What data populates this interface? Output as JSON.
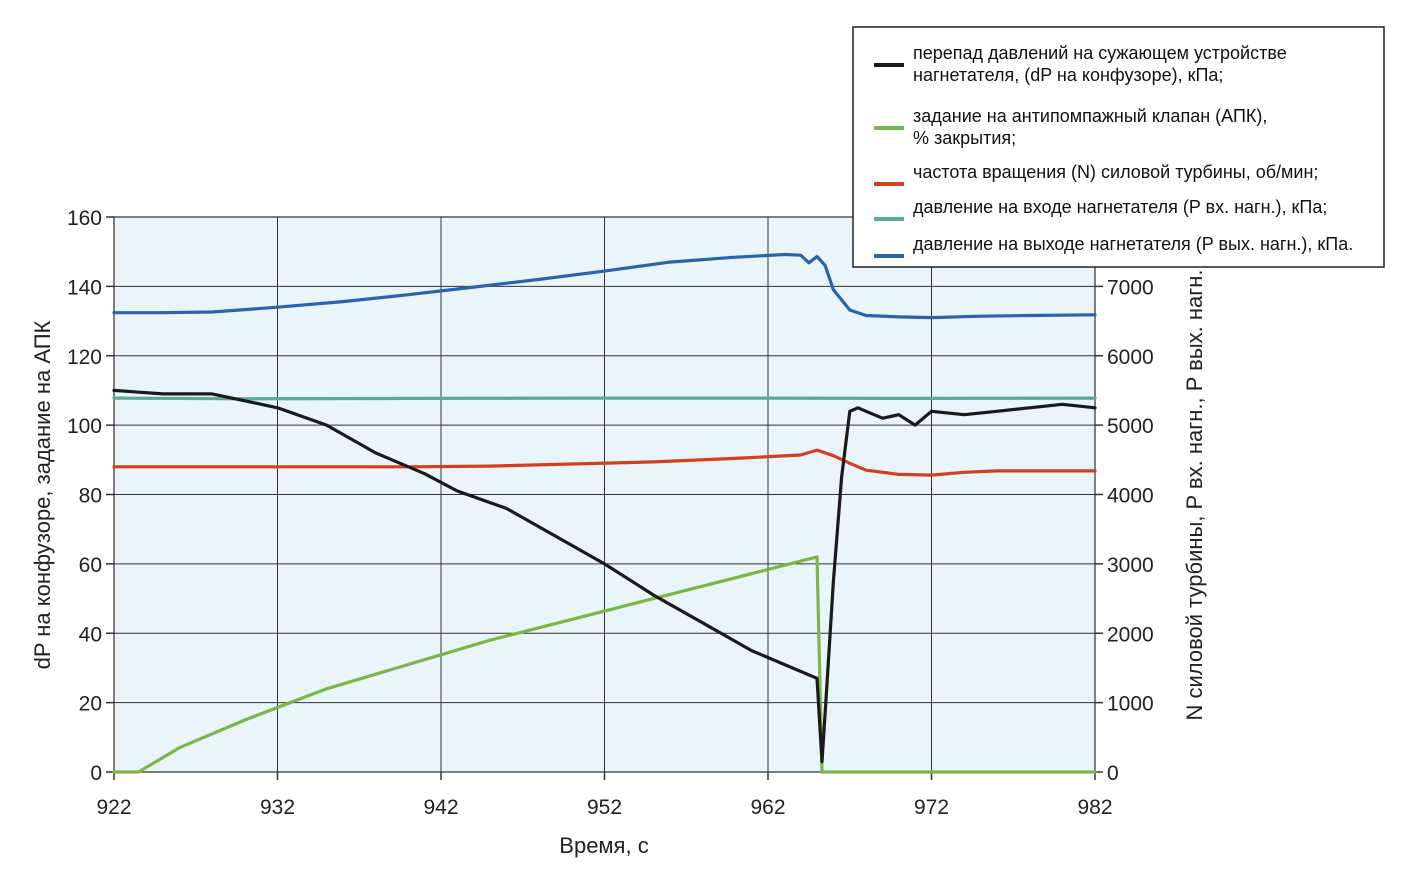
{
  "chart_data": {
    "type": "line",
    "xlabel": "Время, с",
    "ylabel_left": "dP на конфузоре, задание на АПК",
    "ylabel_right": "N силовой турбины, P вх. нагн., P вых. нагн.",
    "xlim": [
      922,
      982
    ],
    "ylim_left": [
      0,
      160
    ],
    "ylim_right": [
      0,
      8000
    ],
    "x_ticks": [
      922,
      932,
      942,
      952,
      962,
      972,
      982
    ],
    "y_ticks_left": [
      0,
      20,
      40,
      60,
      80,
      100,
      120,
      140,
      160
    ],
    "y_ticks_right": [
      0,
      1000,
      2000,
      3000,
      4000,
      5000,
      6000,
      7000
    ],
    "grid": true,
    "plot_background": "#eaf4fb",
    "legend_position": "top-right",
    "series": [
      {
        "name": "перепад давлений на сужающем устройстве нагнетателя, (dP на конфузоре), кПа;",
        "legend_lines": [
          "перепад давлений на сужающем устройстве",
          "нагнетателя, (dP на конфузоре), кПа;"
        ],
        "axis": "left",
        "color": "#1a1a1a",
        "x": [
          922,
          925,
          928,
          930,
          932,
          935,
          938,
          941,
          943,
          946,
          949,
          952,
          955,
          958,
          961,
          963,
          965,
          965.3,
          965.6,
          966,
          966.5,
          967,
          967.5,
          968,
          969,
          970,
          971,
          972,
          974,
          976,
          978,
          980,
          982
        ],
        "y": [
          110,
          109,
          109,
          107,
          105,
          100,
          92,
          86,
          81,
          76,
          68,
          60,
          51,
          43,
          35,
          31,
          27,
          3,
          25,
          55,
          85,
          104,
          105,
          104,
          102,
          103,
          100,
          104,
          103,
          104,
          105,
          106,
          105
        ]
      },
      {
        "name": "задание на антипомпажный клапан (АПК), % закрытия;",
        "legend_lines": [
          "задание на антипомпажный клапан (АПК),",
          "% закрытия;"
        ],
        "axis": "left",
        "color": "#7ab648",
        "x": [
          922,
          923.5,
          926,
          930,
          935,
          940,
          945,
          950,
          955,
          960,
          965,
          965.3,
          982
        ],
        "y": [
          0,
          0,
          7,
          15,
          24,
          31,
          38,
          44,
          50,
          56,
          62,
          0,
          0
        ]
      },
      {
        "name": "частота вращения (N) силовой турбины, об/мин;",
        "legend_lines": [
          "частота вращения (N) силовой турбины, об/мин;"
        ],
        "axis": "right",
        "color": "#d4401e",
        "x": [
          922,
          930,
          940,
          945,
          950,
          955,
          960,
          964,
          965,
          966,
          967,
          968,
          970,
          972,
          974,
          976,
          982
        ],
        "y": [
          4400,
          4400,
          4400,
          4410,
          4440,
          4470,
          4520,
          4570,
          4640,
          4560,
          4450,
          4350,
          4290,
          4280,
          4320,
          4340,
          4340
        ]
      },
      {
        "name": "давление на входе нагнетателя (P вх. нагн.), кПа;",
        "legend_lines": [
          "давление на входе нагнетателя (P вх. нагн.), кПа;"
        ],
        "axis": "right",
        "color": "#5aab94",
        "x": [
          922,
          930,
          940,
          950,
          960,
          970,
          982
        ],
        "y": [
          5390,
          5380,
          5385,
          5390,
          5390,
          5385,
          5390
        ]
      },
      {
        "name": "давление на выходе нагнетателя (P вых. нагн.), кПа.",
        "legend_lines": [
          "давление на выходе нагнетателя (P вых. нагн.), кПа."
        ],
        "axis": "right",
        "color": "#2a62b0",
        "x": [
          922,
          925,
          928,
          932,
          936,
          940,
          944,
          948,
          952,
          956,
          960,
          963,
          964,
          964.5,
          965,
          965.5,
          966,
          967,
          968,
          970,
          972,
          975,
          978,
          982
        ],
        "y": [
          6620,
          6620,
          6630,
          6700,
          6780,
          6880,
          6990,
          7100,
          7220,
          7350,
          7420,
          7460,
          7450,
          7340,
          7430,
          7300,
          6950,
          6660,
          6580,
          6560,
          6550,
          6570,
          6580,
          6590
        ]
      }
    ]
  }
}
